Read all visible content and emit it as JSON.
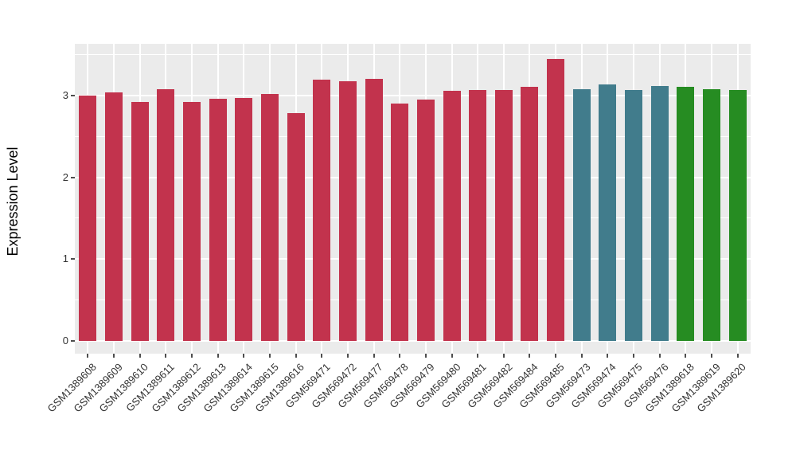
{
  "chart_data": {
    "type": "bar",
    "title": "",
    "xlabel": "",
    "ylabel": "Expression Level",
    "categories": [
      "GSM1389608",
      "GSM1389609",
      "GSM1389610",
      "GSM1389611",
      "GSM1389612",
      "GSM1389613",
      "GSM1389614",
      "GSM1389615",
      "GSM1389616",
      "GSM569471",
      "GSM569472",
      "GSM569477",
      "GSM569478",
      "GSM569479",
      "GSM569480",
      "GSM569481",
      "GSM569482",
      "GSM569484",
      "GSM569485",
      "GSM569473",
      "GSM569474",
      "GSM569475",
      "GSM569476",
      "GSM1389618",
      "GSM1389619",
      "GSM1389620"
    ],
    "values": [
      3.0,
      3.04,
      2.92,
      3.08,
      2.92,
      2.96,
      2.97,
      3.02,
      2.79,
      3.19,
      3.17,
      3.2,
      2.9,
      2.95,
      3.06,
      3.07,
      3.07,
      3.11,
      3.45,
      3.08,
      3.14,
      3.07,
      3.12,
      3.11,
      3.08,
      3.07
    ],
    "groups": [
      "group1",
      "group1",
      "group1",
      "group1",
      "group1",
      "group1",
      "group1",
      "group1",
      "group1",
      "group1",
      "group1",
      "group1",
      "group1",
      "group1",
      "group1",
      "group1",
      "group1",
      "group1",
      "group1",
      "group2",
      "group2",
      "group2",
      "group2",
      "group3",
      "group3",
      "group3"
    ],
    "group_colors": {
      "group1": "#C2334D",
      "group2": "#417C8C",
      "group3": "#268C22"
    },
    "yticks": [
      "0",
      "1",
      "2",
      "3"
    ],
    "minor_gridlines": [
      0.5,
      1.5,
      2.5,
      3.5
    ],
    "ylim": [
      0,
      3.63
    ],
    "panel_bg": "#EBEBEB",
    "gridline_color": "#FFFFFF",
    "plot_bg": "#FFFFFF",
    "legend": "none",
    "grid": "on"
  }
}
